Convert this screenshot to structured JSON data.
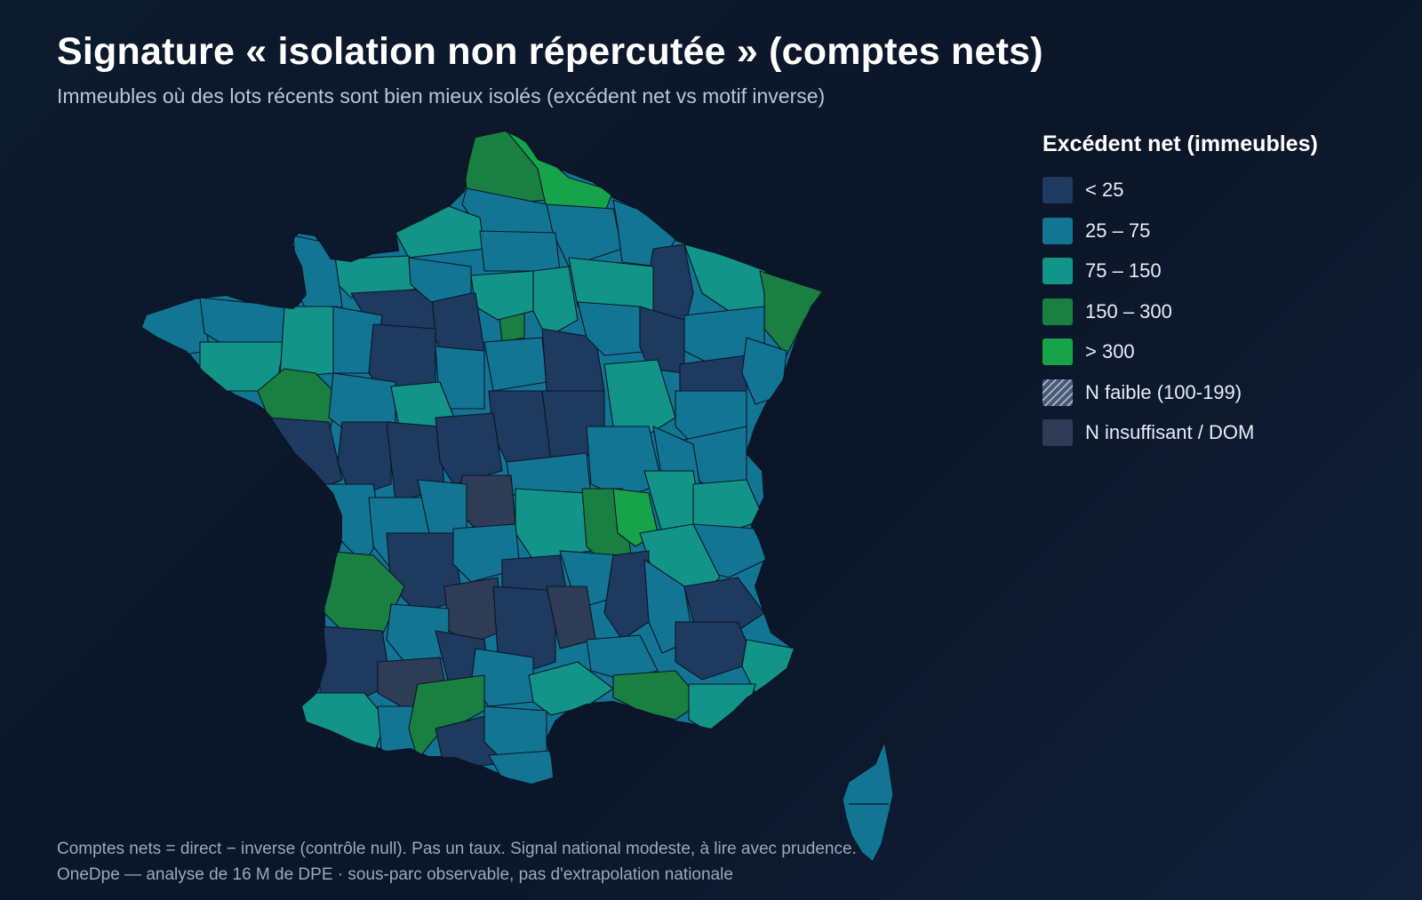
{
  "title": "Signature « isolation non répercutée » (comptes nets)",
  "subtitle": "Immeubles où des lots récents sont bien mieux isolés (excédent net vs motif inverse)",
  "legend": {
    "title": "Excédent net (immeubles)",
    "items": [
      {
        "label": "< 25",
        "color": "#1e3a5f"
      },
      {
        "label": "25 – 75",
        "color": "#137594"
      },
      {
        "label": "75 – 150",
        "color": "#129488"
      },
      {
        "label": "150 – 300",
        "color": "#1a8042"
      },
      {
        "label": "> 300",
        "color": "#16a34a"
      },
      {
        "label": "N faible (100-199)",
        "color": "#7f8ea8",
        "pattern": "hatched"
      },
      {
        "label": "N insuffisant / DOM",
        "color": "#2e3d55"
      }
    ]
  },
  "footer": {
    "line1": "Comptes nets = direct − inverse (contrôle null). Pas un taux. Signal national modeste, à lire avec prudence.",
    "line2": "OneDpe — analyse de 16 M de DPE · sous-parc observable, pas d'extrapolation nationale"
  }
}
